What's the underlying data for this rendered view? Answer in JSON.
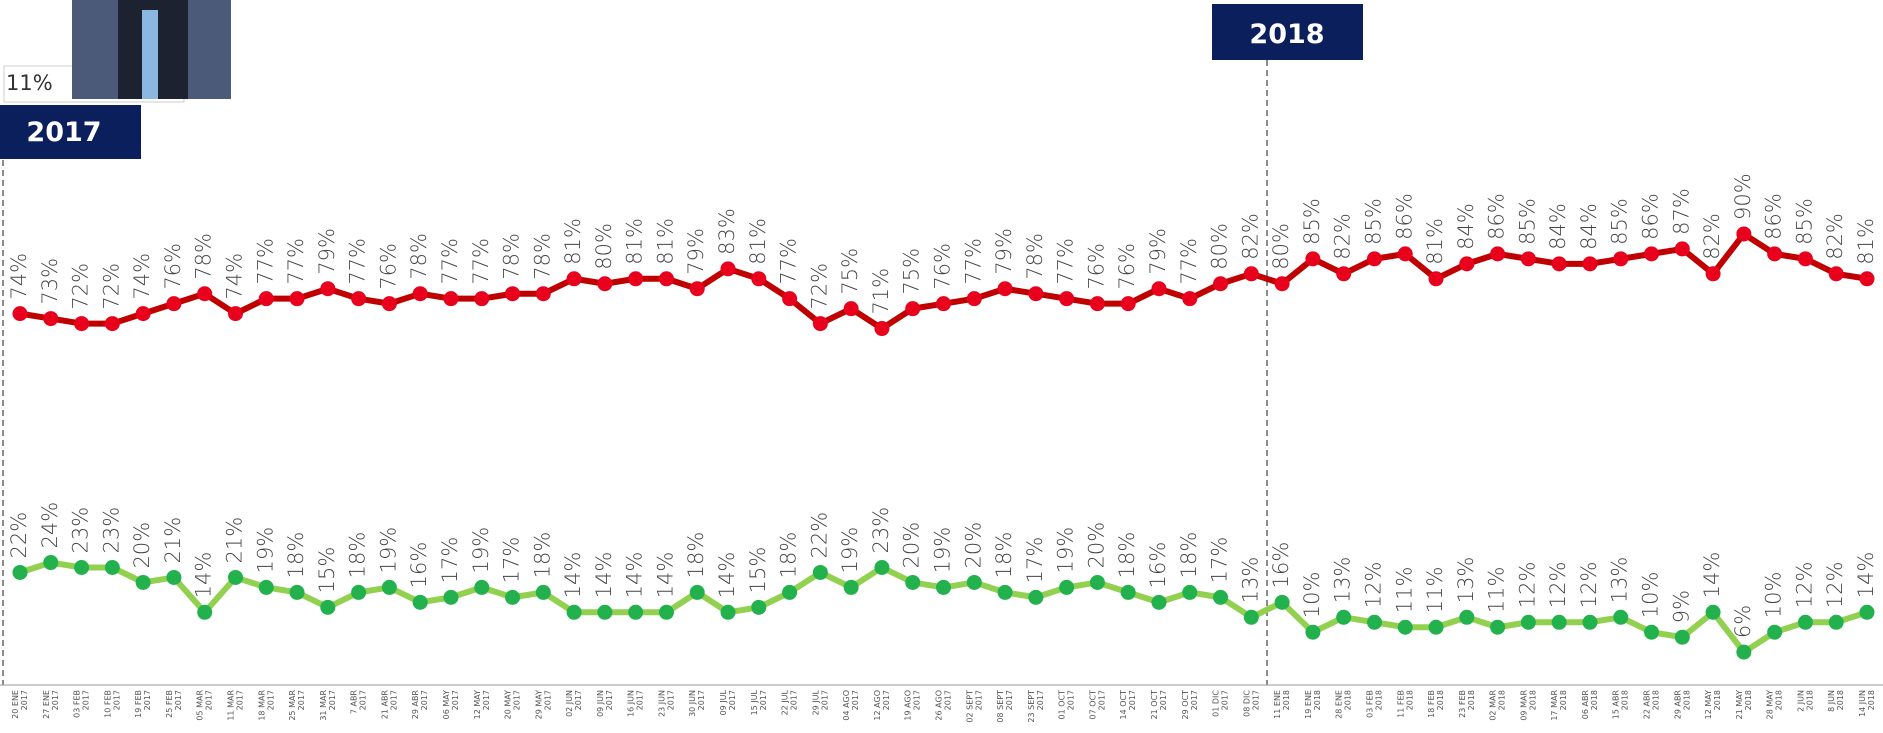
{
  "chart_data": {
    "type": "line",
    "categories": [
      "20 ENE",
      "27 ENE",
      "03 FEB",
      "10 FEB",
      "19 FEB",
      "25 FEB",
      "05 MAR",
      "11 MAR",
      "18 MAR",
      "25 MAR",
      "31 MAR",
      "7 ABR",
      "21 ABR",
      "29 ABR",
      "06 MAY",
      "12 MAY",
      "20 MAY",
      "29 MAY",
      "02 JUN",
      "09 JUN",
      "16 JUN",
      "23 JUN",
      "30 JUN",
      "09 JUL",
      "15 JUL",
      "22 JUL",
      "29 JUL",
      "04 AGO",
      "12 AGO",
      "19 AGO",
      "26 AGO",
      "02 SEPT",
      "08 SEPT",
      "23 SEPT",
      "01 OCT",
      "07 OCT",
      "14 OCT",
      "21 OCT",
      "29 OCT",
      "01 DIC",
      "08 DIC",
      "11 ENE",
      "19 ENE",
      "28 ENE",
      "03 FEB",
      "11 FEB",
      "18 FEB",
      "23 FEB",
      "02 MAR",
      "09 MAR",
      "17 MAR",
      "06 ABR",
      "15 ABR",
      "22 ABR",
      "29 ABR",
      "12 MAY",
      "21 MAY",
      "28 MAY",
      "2 JUN",
      "8 JUN",
      "14 JUN"
    ],
    "category_years": [
      "2017",
      "2017",
      "2017",
      "2017",
      "2017",
      "2017",
      "2017",
      "2017",
      "2017",
      "2017",
      "2017",
      "2017",
      "2017",
      "2017",
      "2017",
      "2017",
      "2017",
      "2017",
      "2017",
      "2017",
      "2017",
      "2017",
      "2017",
      "2017",
      "2017",
      "2017",
      "2017",
      "2017",
      "2017",
      "2017",
      "2017",
      "2017",
      "2017",
      "2017",
      "2017",
      "2017",
      "2017",
      "2017",
      "2017",
      "2017",
      "2017",
      "2018",
      "2018",
      "2018",
      "2018",
      "2018",
      "2018",
      "2018",
      "2018",
      "2018",
      "2018",
      "2018",
      "2018",
      "2018",
      "2018",
      "2018",
      "2018",
      "2018",
      "2018",
      "2018",
      "2018"
    ],
    "series": [
      {
        "color": "#c00000",
        "marker_color": "#e8001c",
        "values": [
          74,
          73,
          72,
          72,
          74,
          76,
          78,
          74,
          77,
          77,
          79,
          77,
          76,
          78,
          77,
          77,
          78,
          78,
          81,
          80,
          81,
          81,
          79,
          83,
          81,
          77,
          72,
          75,
          71,
          75,
          76,
          77,
          79,
          78,
          77,
          76,
          76,
          79,
          77,
          80,
          82,
          80,
          85,
          82,
          85,
          86,
          81,
          84,
          86,
          85,
          84,
          84,
          85,
          86,
          87,
          82,
          90,
          86,
          85,
          82,
          81
        ],
        "value_labels": [
          "74%",
          "73%",
          "72%",
          "72%",
          "74%",
          "76%",
          "78%",
          "74%",
          "77%",
          "77%",
          "79%",
          "77%",
          "76%",
          "78%",
          "77%",
          "77%",
          "78%",
          "78%",
          "81%",
          "80%",
          "81%",
          "81%",
          "79%",
          "83%",
          "81%",
          "77%",
          "72%",
          "75%",
          "71%",
          "75%",
          "76%",
          "77%",
          "79%",
          "78%",
          "77%",
          "76%",
          "76%",
          "79%",
          "77%",
          "80%",
          "82%",
          "80%",
          "85%",
          "82%",
          "85%",
          "86%",
          "81%",
          "84%",
          "86%",
          "85%",
          "84%",
          "84%",
          "85%",
          "86%",
          "87%",
          "82%",
          "90%",
          "86%",
          "85%",
          "82%",
          "81%"
        ]
      },
      {
        "color": "#92d050",
        "marker_color": "#22b14c",
        "values": [
          22,
          24,
          23,
          23,
          20,
          21,
          14,
          21,
          19,
          18,
          15,
          18,
          19,
          16,
          17,
          19,
          17,
          18,
          14,
          14,
          14,
          14,
          18,
          14,
          15,
          18,
          22,
          19,
          23,
          20,
          19,
          20,
          18,
          17,
          19,
          20,
          18,
          16,
          18,
          17,
          13,
          16,
          10,
          13,
          12,
          11,
          11,
          13,
          11,
          12,
          12,
          12,
          13,
          10,
          9,
          14,
          6,
          10,
          12,
          12,
          14
        ],
        "value_labels": [
          "22%",
          "24%",
          "23%",
          "23%",
          "20%",
          "21%",
          "14%",
          "21%",
          "19%",
          "18%",
          "15%",
          "18%",
          "19%",
          "16%",
          "17%",
          "19%",
          "17%",
          "18%",
          "14%",
          "14%",
          "14%",
          "14%",
          "18%",
          "14%",
          "15%",
          "18%",
          "22%",
          "19%",
          "23%",
          "20%",
          "19%",
          "20%",
          "18%",
          "17%",
          "19%",
          "20%",
          "18%",
          "16%",
          "18%",
          "17%",
          "13%",
          "16%",
          "10%",
          "13%",
          "12%",
          "11%",
          "11%",
          "13%",
          "11%",
          "12%",
          "12%",
          "12%",
          "13%",
          "10%",
          "9%",
          "14%",
          "6%",
          "10%",
          "12%",
          "12%",
          "14%"
        ]
      }
    ],
    "ylim": [
      0,
      137
    ],
    "annotations": [
      "2017",
      "2018",
      "11%"
    ]
  }
}
